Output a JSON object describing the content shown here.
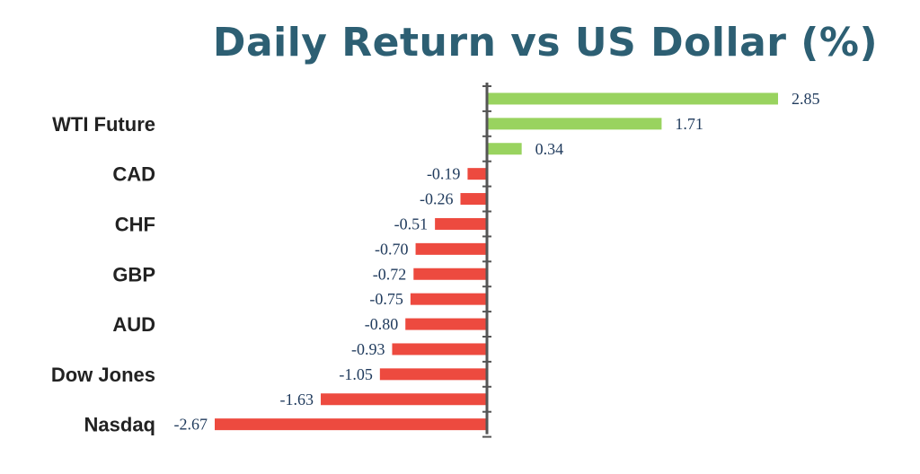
{
  "title": "Daily Return vs US Dollar (%)",
  "colors": {
    "positive": "#99d35f",
    "negative": "#ed4a3f",
    "axis": "#555555",
    "title": "#2d5f73"
  },
  "chart_data": {
    "type": "bar",
    "orientation": "horizontal",
    "title": "Daily Return vs US Dollar (%)",
    "values": [
      2.85,
      1.71,
      0.34,
      -0.19,
      -0.26,
      -0.51,
      -0.7,
      -0.72,
      -0.75,
      -0.8,
      -0.93,
      -1.05,
      -1.63,
      -2.67
    ],
    "value_labels": [
      "2.85",
      "1.71",
      "0.34",
      "-0.19",
      "-0.26",
      "-0.51",
      "-0.70",
      "-0.72",
      "-0.75",
      "-0.80",
      "-0.93",
      "-1.05",
      "-1.63",
      "-2.67"
    ],
    "category_labels": [
      {
        "bar": 1,
        "text": "WTI Future"
      },
      {
        "bar": 3,
        "text": "CAD"
      },
      {
        "bar": 5,
        "text": "CHF"
      },
      {
        "bar": 7,
        "text": "GBP"
      },
      {
        "bar": 9,
        "text": "AUD"
      },
      {
        "bar": 11,
        "text": "Dow Jones"
      },
      {
        "bar": 13,
        "text": "Nasdaq"
      }
    ],
    "xlim": [
      -2.67,
      2.85
    ],
    "xlabel": "",
    "ylabel": "",
    "grid": false,
    "legend": "none"
  }
}
